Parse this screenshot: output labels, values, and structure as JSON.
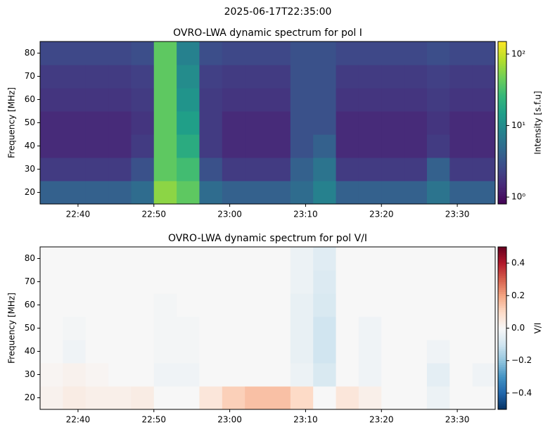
{
  "title": "2025-06-17T22:35:00",
  "chart_data": [
    {
      "type": "heatmap",
      "title": "OVRO-LWA dynamic spectrum for pol I",
      "ylabel": "Frequency [MHz]",
      "colorbar_label": "Intensity [s.f.u]",
      "cmap": "viridis",
      "color_scale": "log",
      "clim": [
        0.8,
        150
      ],
      "cticks": [
        {
          "value": 1,
          "label": "10⁰"
        },
        {
          "value": 10,
          "label": "10¹"
        },
        {
          "value": 100,
          "label": "10²"
        }
      ],
      "xlim": [
        "22:35",
        "23:35"
      ],
      "xticks": [
        "22:40",
        "22:50",
        "23:00",
        "23:10",
        "23:20",
        "23:30"
      ],
      "ylim": [
        15,
        85
      ],
      "yticks": [
        20,
        30,
        40,
        50,
        60,
        70,
        80
      ],
      "xbins": [
        "22:35",
        "22:38",
        "22:41",
        "22:44",
        "22:47",
        "22:50",
        "22:53",
        "22:56",
        "22:59",
        "23:02",
        "23:05",
        "23:08",
        "23:11",
        "23:14",
        "23:17",
        "23:20",
        "23:23",
        "23:26",
        "23:29",
        "23:32",
        "23:35"
      ],
      "ybins": [
        15,
        25,
        35,
        45,
        55,
        65,
        75,
        85
      ],
      "values": [
        [
          4,
          4,
          4,
          4,
          5,
          60,
          40,
          5,
          4,
          4,
          4,
          5,
          8,
          4,
          4,
          4,
          4,
          6,
          4,
          4
        ],
        [
          2,
          2,
          2,
          2,
          3,
          40,
          30,
          3,
          2,
          2,
          2,
          4,
          6,
          2,
          2,
          2,
          2,
          4,
          2,
          2
        ],
        [
          1.5,
          1.5,
          1.5,
          1.5,
          2,
          40,
          20,
          2,
          1.5,
          1.5,
          1.5,
          3,
          4,
          1.5,
          1.5,
          1.5,
          1.5,
          2,
          1.5,
          1.5
        ],
        [
          1.5,
          1.5,
          1.5,
          1.5,
          1.8,
          40,
          15,
          2,
          1.5,
          1.5,
          1.5,
          3,
          3,
          1.5,
          1.5,
          1.5,
          1.5,
          1.8,
          1.5,
          1.5
        ],
        [
          1.8,
          1.8,
          1.8,
          1.8,
          2,
          40,
          12,
          2,
          1.8,
          1.8,
          1.8,
          3,
          3,
          1.8,
          1.8,
          1.8,
          1.8,
          2,
          1.8,
          1.8
        ],
        [
          2,
          2,
          2,
          2,
          2.2,
          40,
          10,
          2.2,
          2,
          2,
          2,
          3,
          3,
          2,
          2,
          2,
          2,
          2.2,
          2,
          2
        ],
        [
          2.5,
          2.5,
          2.5,
          2.5,
          2.8,
          40,
          8,
          2.8,
          2.5,
          2.5,
          2.5,
          3,
          3,
          2.5,
          2.5,
          2.5,
          2.5,
          2.8,
          2.5,
          2.5
        ]
      ]
    },
    {
      "type": "heatmap",
      "title": "OVRO-LWA dynamic spectrum for pol V/I",
      "ylabel": "Frequency [MHz]",
      "colorbar_label": "V/I",
      "cmap": "RdBu_r",
      "color_scale": "linear",
      "clim": [
        -0.5,
        0.5
      ],
      "cticks": [
        0.4,
        0.2,
        {
          "value": 0,
          "label": "0.0"
        },
        {
          "value": -0.2,
          "label": "−0.2"
        },
        {
          "value": -0.4,
          "label": "−0.4"
        }
      ],
      "xlim": [
        "22:35",
        "23:35"
      ],
      "xticks": [
        "22:40",
        "22:50",
        "23:00",
        "23:10",
        "23:20",
        "23:30"
      ],
      "ylim": [
        15,
        85
      ],
      "yticks": [
        20,
        30,
        40,
        50,
        60,
        70,
        80
      ],
      "xbins": [
        "22:35",
        "22:38",
        "22:41",
        "22:44",
        "22:47",
        "22:50",
        "22:53",
        "22:56",
        "22:59",
        "23:02",
        "23:05",
        "23:08",
        "23:11",
        "23:14",
        "23:17",
        "23:20",
        "23:23",
        "23:26",
        "23:29",
        "23:32",
        "23:35"
      ],
      "ybins": [
        15,
        25,
        35,
        45,
        55,
        65,
        75,
        85
      ],
      "values": [
        [
          0.02,
          0.04,
          0.03,
          0.03,
          0.04,
          0.0,
          0.0,
          0.06,
          0.12,
          0.15,
          0.15,
          0.1,
          0.0,
          0.06,
          0.03,
          0.0,
          0.0,
          -0.03,
          0.0,
          0.0
        ],
        [
          0.01,
          0.02,
          0.01,
          0.0,
          0.0,
          -0.02,
          -0.02,
          0.0,
          0.0,
          0.0,
          0.0,
          -0.03,
          -0.08,
          0.0,
          -0.02,
          0.0,
          0.0,
          -0.05,
          0.0,
          -0.02
        ],
        [
          0.0,
          -0.02,
          0.0,
          0.0,
          0.0,
          -0.01,
          -0.01,
          0.0,
          0.0,
          0.0,
          0.0,
          -0.04,
          -0.1,
          0.0,
          -0.02,
          0.0,
          0.0,
          -0.02,
          0.0,
          0.0
        ],
        [
          0.0,
          -0.01,
          0.0,
          0.0,
          0.0,
          -0.01,
          -0.01,
          0.0,
          0.0,
          0.0,
          0.0,
          -0.04,
          -0.1,
          0.0,
          -0.02,
          0.0,
          0.0,
          0.0,
          0.0,
          0.0
        ],
        [
          0.0,
          0.0,
          0.0,
          0.0,
          0.0,
          -0.01,
          0.0,
          0.0,
          0.0,
          0.0,
          0.0,
          -0.04,
          -0.08,
          0.0,
          0.0,
          0.0,
          0.0,
          0.0,
          0.0,
          0.0
        ],
        [
          0.0,
          0.0,
          0.0,
          0.0,
          0.0,
          0.0,
          0.0,
          0.0,
          0.0,
          0.0,
          0.0,
          -0.03,
          -0.07,
          0.0,
          0.0,
          0.0,
          0.0,
          0.0,
          0.0,
          0.0
        ],
        [
          0.0,
          0.0,
          0.0,
          0.0,
          0.0,
          0.0,
          0.0,
          0.0,
          0.0,
          0.0,
          0.0,
          -0.03,
          -0.06,
          0.0,
          0.0,
          0.0,
          0.0,
          0.0,
          0.0,
          0.0
        ]
      ]
    }
  ]
}
